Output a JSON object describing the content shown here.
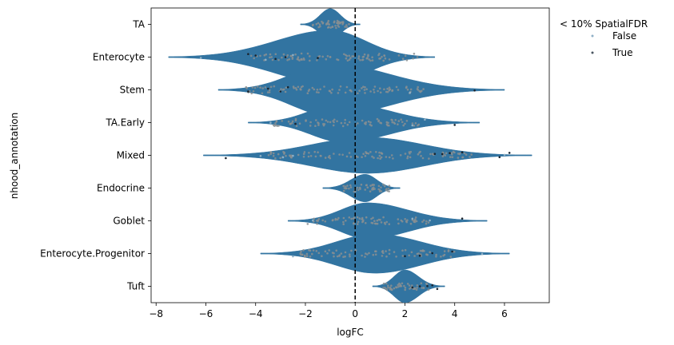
{
  "chart_data": {
    "type": "violin",
    "orientation": "horizontal",
    "title": "",
    "xlabel": "logFC",
    "ylabel": "nhood_annotation",
    "xlim": [
      -8.2,
      7.8
    ],
    "xticks": [
      -8,
      -6,
      -4,
      -2,
      0,
      2,
      4,
      6
    ],
    "xtick_labels": [
      "−8",
      "−6",
      "−4",
      "−2",
      "0",
      "2",
      "4",
      "6"
    ],
    "reference_line": {
      "x": 0,
      "style": "dashed"
    },
    "violin_color": "#3274a1",
    "legend": {
      "title": "< 10% SpatialFDR",
      "placement": "outside-top-right",
      "entries": [
        {
          "label": "False",
          "color": "#8fb0c6"
        },
        {
          "label": "True",
          "color": "#4a5560"
        }
      ]
    },
    "categories": [
      "TA",
      "Enterocyte",
      "Stem",
      "TA.Early",
      "Mixed",
      "Endocrine",
      "Goblet",
      "Enterocyte.Progenitor",
      "Tuft"
    ],
    "violins": [
      {
        "category": "TA",
        "min": -2.2,
        "max": 0.2,
        "peak": -1.0,
        "halfwidth": 0.48,
        "outliers_false": [],
        "outliers_true": []
      },
      {
        "category": "Enterocyte",
        "min": -7.5,
        "max": 3.2,
        "peak": -1.0,
        "halfwidth": 0.82,
        "outliers_false": [
          -6.2,
          -3.6,
          -2.5
        ],
        "outliers_true": [
          -4.3,
          -4.0,
          -3.2,
          -2.8,
          -1.5
        ]
      },
      {
        "category": "Stem",
        "min": -5.5,
        "max": 6.0,
        "peak": -1.0,
        "halfwidth": 0.8,
        "outliers_false": [
          -3.0,
          2.2
        ],
        "outliers_true": [
          -4.3,
          -3.5,
          -3.0,
          -2.7,
          4.8
        ]
      },
      {
        "category": "TA.Early",
        "min": -4.3,
        "max": 5.0,
        "peak": -0.5,
        "halfwidth": 0.6,
        "outliers_false": [
          -3.4,
          2.3,
          2.8
        ],
        "outliers_true": [
          -2.4,
          4.0
        ]
      },
      {
        "category": "Mixed",
        "min": -6.1,
        "max": 7.1,
        "peak": 0.5,
        "halfwidth": 0.55,
        "outliers_false": [
          -3.8,
          -2.9,
          -2.5,
          6.0
        ],
        "outliers_true": [
          -5.2,
          3.2,
          3.5,
          3.8,
          4.3,
          5.8,
          6.2
        ]
      },
      {
        "category": "Endocrine",
        "min": -1.3,
        "max": 1.8,
        "peak": 0.4,
        "halfwidth": 0.42,
        "outliers_false": [],
        "outliers_true": []
      },
      {
        "category": "Goblet",
        "min": -2.7,
        "max": 5.3,
        "peak": 0.5,
        "halfwidth": 0.55,
        "outliers_false": [
          -1.7,
          2.3,
          3.0
        ],
        "outliers_true": [
          4.3
        ]
      },
      {
        "category": "Enterocyte.Progenitor",
        "min": -3.8,
        "max": 6.2,
        "peak": 0.8,
        "halfwidth": 0.6,
        "outliers_false": [
          -2.5,
          5.1
        ],
        "outliers_true": [
          2.0,
          2.6,
          3.1,
          3.9
        ]
      },
      {
        "category": "Tuft",
        "min": 0.7,
        "max": 3.6,
        "peak": 2.0,
        "halfwidth": 0.5,
        "outliers_false": [],
        "outliers_true": [
          2.3,
          2.6,
          2.9,
          3.1,
          3.3
        ]
      }
    ]
  }
}
